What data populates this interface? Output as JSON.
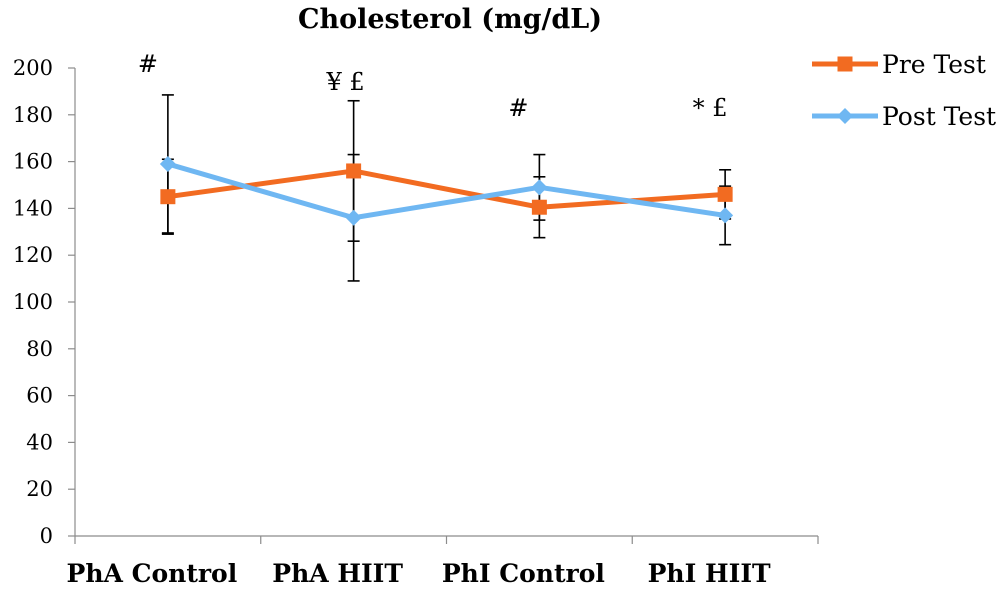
{
  "chart_data": {
    "type": "line",
    "title": "Cholesterol (mg/dL)",
    "xlabel": "",
    "ylabel": "",
    "categories": [
      "PhA Control",
      "PhA HIIT",
      "PhI Control",
      "PhI HIIT"
    ],
    "ylim": [
      0,
      200
    ],
    "yticks": [
      0,
      20,
      40,
      60,
      80,
      100,
      120,
      140,
      160,
      180,
      200
    ],
    "grid": false,
    "legend_position": "top-right",
    "series": [
      {
        "name": "Pre Test",
        "color": "#F26B21",
        "marker": "square",
        "values": [
          145,
          156,
          140.5,
          146
        ],
        "error": [
          16,
          30,
          13,
          10.5
        ]
      },
      {
        "name": "Post Test",
        "color": "#6FB7F2",
        "marker": "diamond",
        "values": [
          159,
          136,
          149,
          137
        ],
        "error": [
          29.5,
          27,
          14,
          12.5
        ]
      }
    ],
    "annotations": [
      {
        "category": "PhA Control",
        "text": "#"
      },
      {
        "category": "PhA HIIT",
        "text": "¥ £"
      },
      {
        "category": "PhI Control",
        "text": "#"
      },
      {
        "category": "PhI HIIT",
        "text": "* £"
      }
    ]
  }
}
